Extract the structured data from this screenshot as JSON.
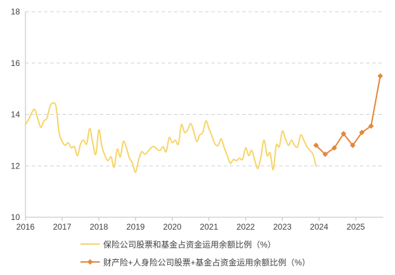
{
  "chart_data": {
    "type": "line",
    "title": "",
    "xlabel": "",
    "ylabel": "",
    "ylim": [
      10,
      18
    ],
    "yticks": [
      10,
      12,
      14,
      16,
      18
    ],
    "xlim": [
      "2016-01",
      "2025-10"
    ],
    "xticks": [
      "2016",
      "2017",
      "2018",
      "2019",
      "2020",
      "2021",
      "2022",
      "2023",
      "2024",
      "2025"
    ],
    "grid": "horizontal dashed",
    "legend": "bottom",
    "series": [
      {
        "name": "保险公司股票和基金占资金运用余额比例（%）",
        "color": "#F6D56A",
        "marker": "none",
        "smooth": true,
        "x": [
          "2016-01",
          "2016-02",
          "2016-03",
          "2016-04",
          "2016-05",
          "2016-06",
          "2016-07",
          "2016-08",
          "2016-09",
          "2016-10",
          "2016-11",
          "2016-12",
          "2017-01",
          "2017-02",
          "2017-03",
          "2017-04",
          "2017-05",
          "2017-06",
          "2017-07",
          "2017-08",
          "2017-09",
          "2017-10",
          "2017-11",
          "2017-12",
          "2018-01",
          "2018-02",
          "2018-03",
          "2018-04",
          "2018-05",
          "2018-06",
          "2018-07",
          "2018-08",
          "2018-09",
          "2018-10",
          "2018-11",
          "2018-12",
          "2019-01",
          "2019-02",
          "2019-03",
          "2019-04",
          "2019-05",
          "2019-06",
          "2019-07",
          "2019-08",
          "2019-09",
          "2019-10",
          "2019-11",
          "2019-12",
          "2020-01",
          "2020-02",
          "2020-03",
          "2020-04",
          "2020-05",
          "2020-06",
          "2020-07",
          "2020-08",
          "2020-09",
          "2020-10",
          "2020-11",
          "2020-12",
          "2021-01",
          "2021-02",
          "2021-03",
          "2021-04",
          "2021-05",
          "2021-06",
          "2021-07",
          "2021-08",
          "2021-09",
          "2021-10",
          "2021-11",
          "2021-12",
          "2022-01",
          "2022-02",
          "2022-03",
          "2022-04",
          "2022-05",
          "2022-06",
          "2022-07",
          "2022-08",
          "2022-09",
          "2022-10",
          "2022-11",
          "2022-12",
          "2023-01",
          "2023-02",
          "2023-03",
          "2023-04",
          "2023-05",
          "2023-06",
          "2023-07",
          "2023-08",
          "2023-09",
          "2023-10",
          "2023-11",
          "2023-12"
        ],
        "y": [
          13.6,
          13.8,
          14.05,
          14.2,
          13.85,
          13.5,
          13.75,
          13.85,
          14.3,
          14.45,
          14.3,
          13.3,
          12.95,
          12.8,
          12.9,
          12.7,
          12.75,
          12.4,
          12.85,
          13.0,
          12.85,
          13.45,
          12.9,
          12.45,
          13.4,
          12.75,
          12.4,
          12.2,
          12.35,
          11.95,
          12.65,
          12.35,
          12.95,
          12.7,
          12.3,
          12.1,
          11.75,
          12.25,
          12.55,
          12.45,
          12.55,
          12.7,
          12.75,
          12.65,
          12.6,
          12.75,
          12.55,
          13.1,
          12.9,
          13.0,
          12.85,
          13.6,
          13.3,
          13.4,
          13.65,
          13.35,
          12.95,
          13.2,
          13.3,
          13.75,
          13.45,
          13.15,
          12.85,
          12.8,
          13.05,
          12.7,
          12.4,
          12.1,
          12.25,
          12.2,
          12.3,
          12.25,
          12.7,
          12.4,
          12.6,
          12.2,
          11.9,
          12.35,
          13.0,
          12.4,
          12.5,
          11.85,
          12.8,
          12.75,
          13.35,
          13.05,
          12.8,
          13.0,
          12.8,
          12.75,
          13.2,
          13.0,
          12.75,
          12.6,
          12.45,
          12.0
        ]
      },
      {
        "name": "财产险+人身险公司股票+基金占资金运用余额比例（%）",
        "color": "#E2883A",
        "marker": "diamond",
        "smooth": false,
        "x": [
          "2023-12",
          "2024-03",
          "2024-06",
          "2024-09",
          "2024-12",
          "2025-03",
          "2025-06",
          "2025-09"
        ],
        "y": [
          12.8,
          12.45,
          12.7,
          13.25,
          12.8,
          13.3,
          13.55,
          15.5
        ]
      }
    ]
  }
}
